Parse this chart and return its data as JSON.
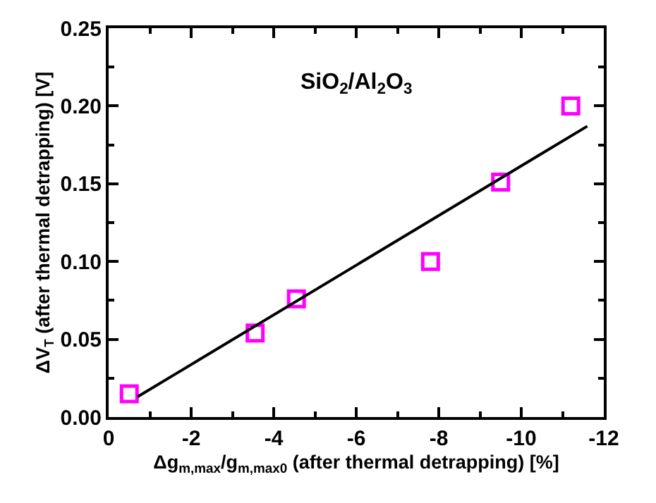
{
  "chart_data": {
    "type": "scatter",
    "xlabel": "Δg$_{m,max}$/g$_{m,max0}$ (after thermal detrapping) [%]",
    "ylabel": "ΔV$_{T}$ (after thermal detrapping) [V]",
    "annotations": [
      "SiO$_{2}$/Al$_{2}$O$_{3}$"
    ],
    "xlim": [
      0,
      -12
    ],
    "xticks": [
      0,
      -2,
      -4,
      -6,
      -8,
      -10,
      -12
    ],
    "ylim": [
      0,
      0.25
    ],
    "yticks": [
      {
        "value": 0,
        "label": "0.00"
      },
      {
        "value": 0.05,
        "label": "0.05"
      },
      {
        "value": 0.1,
        "label": "0.10"
      },
      {
        "value": 0.15,
        "label": "0.15"
      },
      {
        "value": 0.2,
        "label": "0.20"
      },
      {
        "value": 0.25,
        "label": "0.25"
      }
    ],
    "series": [
      {
        "marker": "square",
        "color": "#ff00ff",
        "x": [
          -0.5,
          -3.55,
          -4.55,
          -7.8,
          -9.5,
          -11.2
        ],
        "values": [
          0.015,
          0.054,
          0.076,
          0.1,
          0.151,
          0.2
        ]
      },
      {
        "type": "line",
        "color": "#000000",
        "marker": "none",
        "line_style": "solid",
        "x": [
          -0.7,
          -11.6
        ],
        "values": [
          0.013,
          0.187
        ]
      }
    ]
  }
}
